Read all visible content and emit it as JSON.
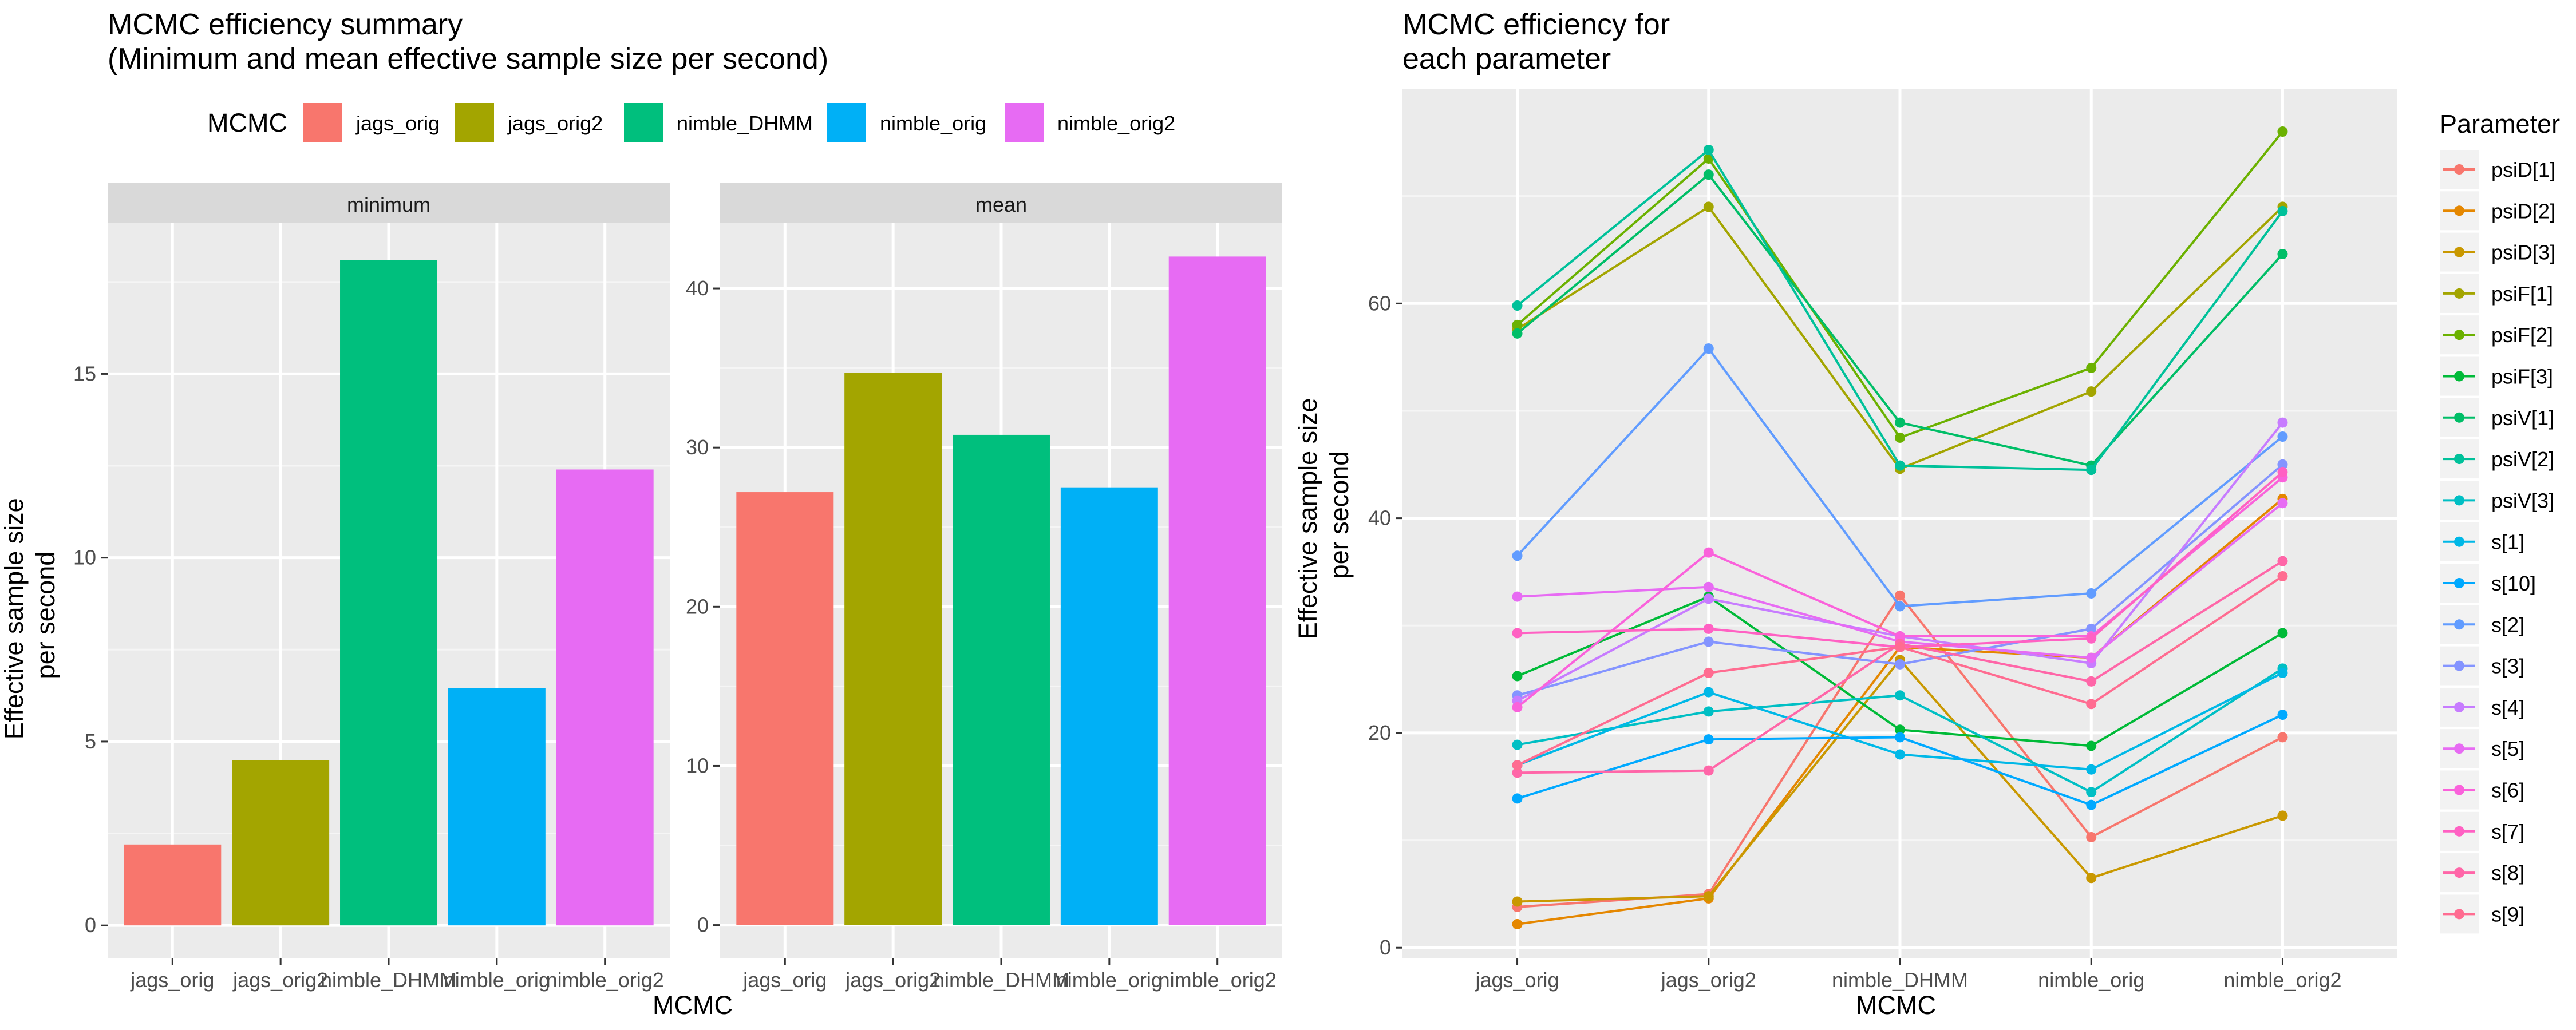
{
  "chart_data": [
    {
      "type": "bar",
      "title": "MCMC efficiency summary\n (Minimum and mean effective sample size per second)",
      "ylabel": "Effective sample size\nper second",
      "xlabel": "MCMC",
      "legend_title": "MCMC",
      "legend_position": "top",
      "categories": [
        "jags_orig",
        "jags_orig2",
        "nimble_DHMM",
        "nimble_orig",
        "nimble_orig2"
      ],
      "colors": [
        "#F8766D",
        "#A3A500",
        "#00BF7D",
        "#00B0F6",
        "#E76BF3"
      ],
      "grid": true,
      "facets": [
        {
          "label": "minimum",
          "ylim": [
            -0.9,
            19.1
          ],
          "yticks": [
            0,
            5,
            10,
            15
          ],
          "values": [
            2.2,
            4.5,
            18.1,
            6.45,
            12.4
          ]
        },
        {
          "label": "mean",
          "ylim": [
            -2.1,
            44.1
          ],
          "yticks": [
            0,
            10,
            20,
            30,
            40
          ],
          "values": [
            27.2,
            34.7,
            30.8,
            27.5,
            42.0
          ]
        }
      ]
    },
    {
      "type": "line",
      "title": "MCMC efficiency for\n each parameter",
      "ylabel": "Effective sample size\nper second",
      "xlabel": "MCMC",
      "legend_title": "Parameter",
      "legend_position": "right",
      "x": [
        "jags_orig",
        "jags_orig2",
        "nimble_DHMM",
        "nimble_orig",
        "nimble_orig2"
      ],
      "ylim": [
        -1,
        80
      ],
      "yticks": [
        0,
        20,
        40,
        60
      ],
      "grid": true,
      "series": [
        {
          "name": "psiD[1]",
          "color": "#F8766D",
          "values": [
            3.8,
            5.0,
            32.8,
            10.3,
            19.6
          ]
        },
        {
          "name": "psiD[2]",
          "color": "#E58700",
          "values": [
            2.2,
            4.6,
            28.0,
            27.0,
            41.8
          ]
        },
        {
          "name": "psiD[3]",
          "color": "#C99800",
          "values": [
            4.3,
            4.8,
            26.8,
            6.5,
            12.3
          ]
        },
        {
          "name": "psiF[1]",
          "color": "#A3A500",
          "values": [
            57.6,
            69.0,
            44.6,
            51.8,
            69.0
          ]
        },
        {
          "name": "psiF[2]",
          "color": "#6BB100",
          "values": [
            58.0,
            73.5,
            47.5,
            54.0,
            76.0
          ]
        },
        {
          "name": "psiF[3]",
          "color": "#00BA38",
          "values": [
            25.3,
            32.7,
            20.3,
            18.8,
            29.3
          ]
        },
        {
          "name": "psiV[1]",
          "color": "#00BE67",
          "values": [
            57.2,
            72.0,
            48.9,
            44.9,
            64.6
          ]
        },
        {
          "name": "psiV[2]",
          "color": "#00C19A",
          "values": [
            59.8,
            74.3,
            44.9,
            44.5,
            68.6
          ]
        },
        {
          "name": "psiV[3]",
          "color": "#00BFC4",
          "values": [
            18.9,
            22.0,
            23.5,
            14.5,
            26.0
          ]
        },
        {
          "name": "s[1]",
          "color": "#00B8E7",
          "values": [
            17.0,
            23.8,
            18.0,
            16.6,
            25.6
          ]
        },
        {
          "name": "s[10]",
          "color": "#00A9FF",
          "values": [
            13.9,
            19.4,
            19.6,
            13.3,
            21.7
          ]
        },
        {
          "name": "s[2]",
          "color": "#619CFF",
          "values": [
            36.5,
            55.8,
            31.8,
            33.0,
            47.6
          ]
        },
        {
          "name": "s[3]",
          "color": "#8494FF",
          "values": [
            23.5,
            28.5,
            26.4,
            29.7,
            45.0
          ]
        },
        {
          "name": "s[4]",
          "color": "#C77CFF",
          "values": [
            23.0,
            32.5,
            29.0,
            26.5,
            48.9
          ]
        },
        {
          "name": "s[5]",
          "color": "#E76BF3",
          "values": [
            32.7,
            33.6,
            28.5,
            27.0,
            41.4
          ]
        },
        {
          "name": "s[6]",
          "color": "#FA62DB",
          "values": [
            22.4,
            36.8,
            29.0,
            29.0,
            43.8
          ]
        },
        {
          "name": "s[7]",
          "color": "#FF61C3",
          "values": [
            29.3,
            29.7,
            28.0,
            28.8,
            44.3
          ]
        },
        {
          "name": "s[8]",
          "color": "#FF66A8",
          "values": [
            16.3,
            16.5,
            28.3,
            24.8,
            36.0
          ]
        },
        {
          "name": "s[9]",
          "color": "#FF6C91",
          "values": [
            17.0,
            25.6,
            28.0,
            22.7,
            34.6
          ]
        }
      ]
    }
  ]
}
